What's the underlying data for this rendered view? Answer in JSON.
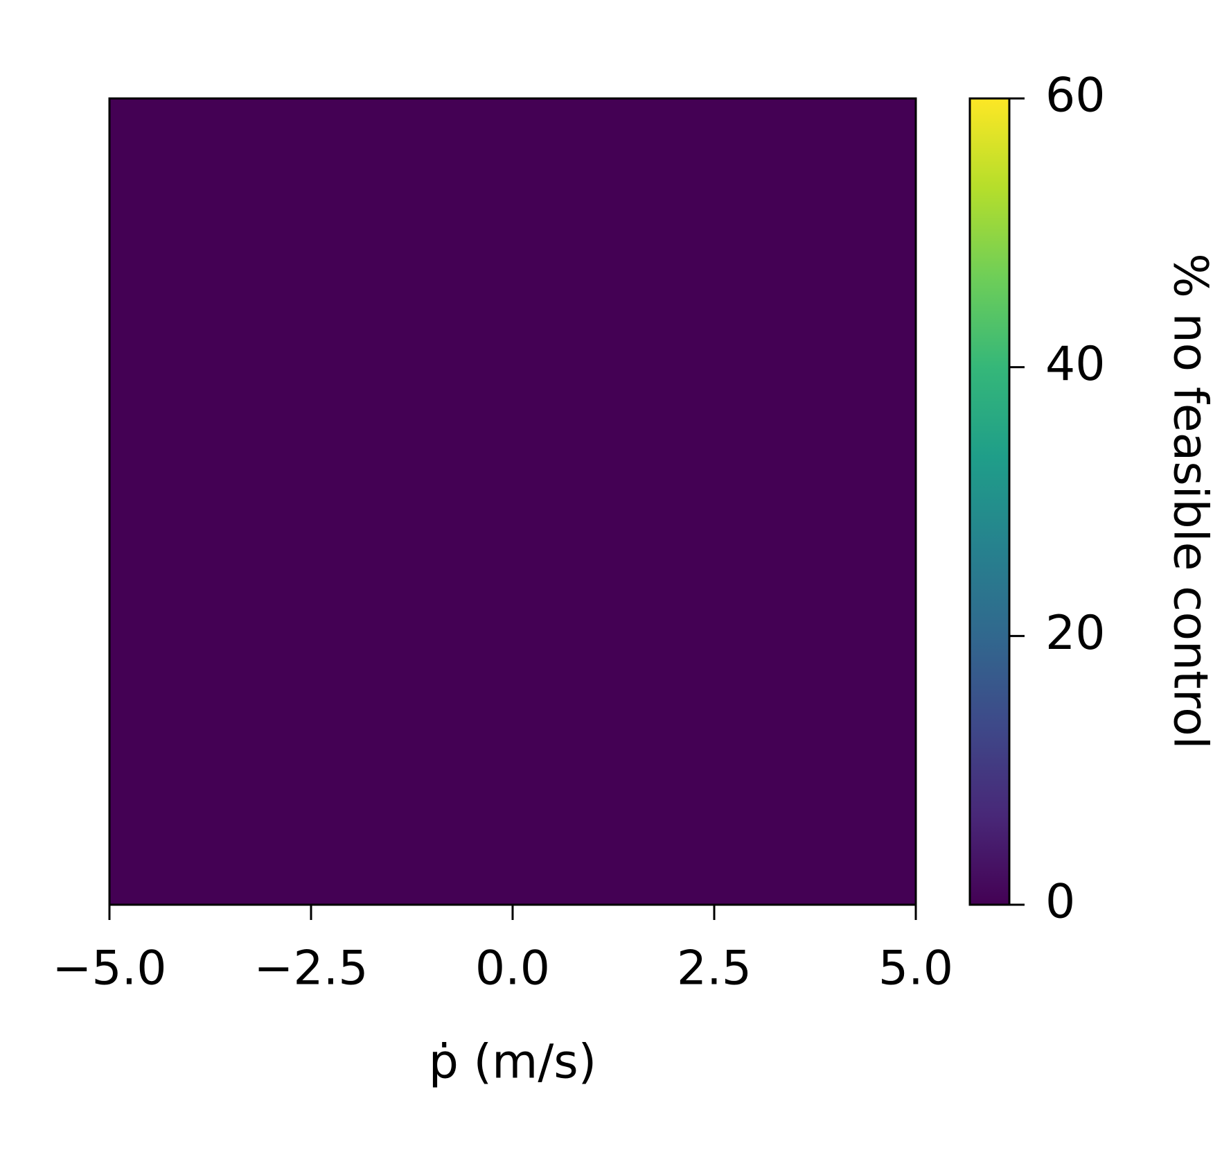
{
  "chart_data": {
    "type": "heatmap",
    "values": [
      [
        0
      ]
    ],
    "colormap": "viridis",
    "xlim": [
      -5,
      5
    ],
    "xticks": [
      {
        "value": -5,
        "label": "−5.0"
      },
      {
        "value": -2.5,
        "label": "−2.5"
      },
      {
        "value": 0,
        "label": "0.0"
      },
      {
        "value": 2.5,
        "label": "2.5"
      },
      {
        "value": 5,
        "label": "5.0"
      }
    ],
    "x_label": "ṗ (m/s)",
    "clim": [
      0,
      60
    ],
    "cticks": [
      0,
      20,
      40,
      60
    ],
    "colorbar_label": "% no feasible control"
  }
}
